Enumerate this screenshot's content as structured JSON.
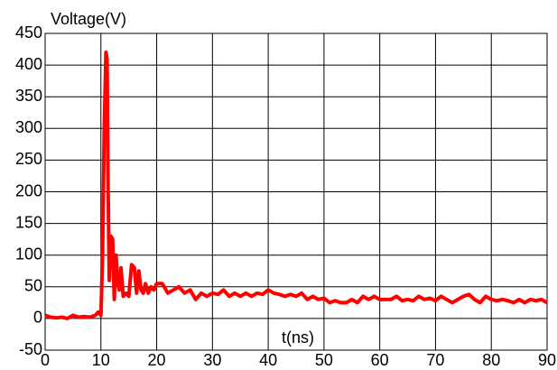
{
  "chart_data": {
    "type": "line",
    "ylabel": "Voltage(V)",
    "xlabel": "t(ns)",
    "color": "#ff0000",
    "grid": true,
    "xlim": [
      0,
      90
    ],
    "xticks": [
      0,
      10,
      20,
      30,
      40,
      50,
      60,
      70,
      80,
      90
    ],
    "ylim": [
      -50,
      450
    ],
    "yticks": [
      -50,
      0,
      50,
      100,
      150,
      200,
      250,
      300,
      350,
      400,
      450
    ],
    "x": [
      0,
      1,
      2,
      3,
      4,
      5,
      6,
      7,
      8,
      9,
      9.5,
      10,
      10.3,
      10.6,
      10.9,
      11.1,
      11.3,
      11.5,
      11.8,
      12.1,
      12.4,
      12.7,
      13,
      13.3,
      13.6,
      14,
      14.5,
      15,
      15.5,
      16,
      16.4,
      16.8,
      17.2,
      17.6,
      18,
      18.5,
      19,
      19.5,
      20,
      21,
      22,
      23,
      24,
      25,
      26,
      27,
      28,
      29,
      30,
      31,
      32,
      33,
      34,
      35,
      36,
      37,
      38,
      39,
      40,
      41,
      42,
      43,
      44,
      45,
      46,
      47,
      48,
      49,
      50,
      51,
      52,
      53,
      54,
      55,
      56,
      57,
      58,
      59,
      60,
      61,
      62,
      63,
      64,
      65,
      66,
      67,
      68,
      69,
      70,
      71,
      72,
      73,
      74,
      75,
      76,
      77,
      78,
      79,
      80,
      81,
      82,
      83,
      84,
      85,
      86,
      87,
      88,
      89,
      90
    ],
    "values": [
      5,
      2,
      1,
      2,
      0,
      5,
      2,
      3,
      2,
      5,
      10,
      5,
      100,
      300,
      420,
      410,
      200,
      60,
      130,
      125,
      30,
      100,
      60,
      45,
      80,
      35,
      40,
      35,
      85,
      80,
      40,
      75,
      45,
      40,
      55,
      40,
      50,
      45,
      55,
      55,
      40,
      45,
      50,
      40,
      45,
      30,
      40,
      35,
      40,
      38,
      45,
      35,
      40,
      35,
      40,
      35,
      40,
      38,
      45,
      40,
      38,
      35,
      38,
      35,
      40,
      30,
      35,
      30,
      32,
      25,
      28,
      25,
      25,
      30,
      25,
      35,
      30,
      35,
      30,
      30,
      30,
      35,
      28,
      30,
      28,
      35,
      30,
      32,
      28,
      35,
      30,
      25,
      30,
      35,
      38,
      30,
      25,
      35,
      30,
      28,
      30,
      28,
      25,
      30,
      25,
      30,
      28,
      30,
      25
    ]
  }
}
